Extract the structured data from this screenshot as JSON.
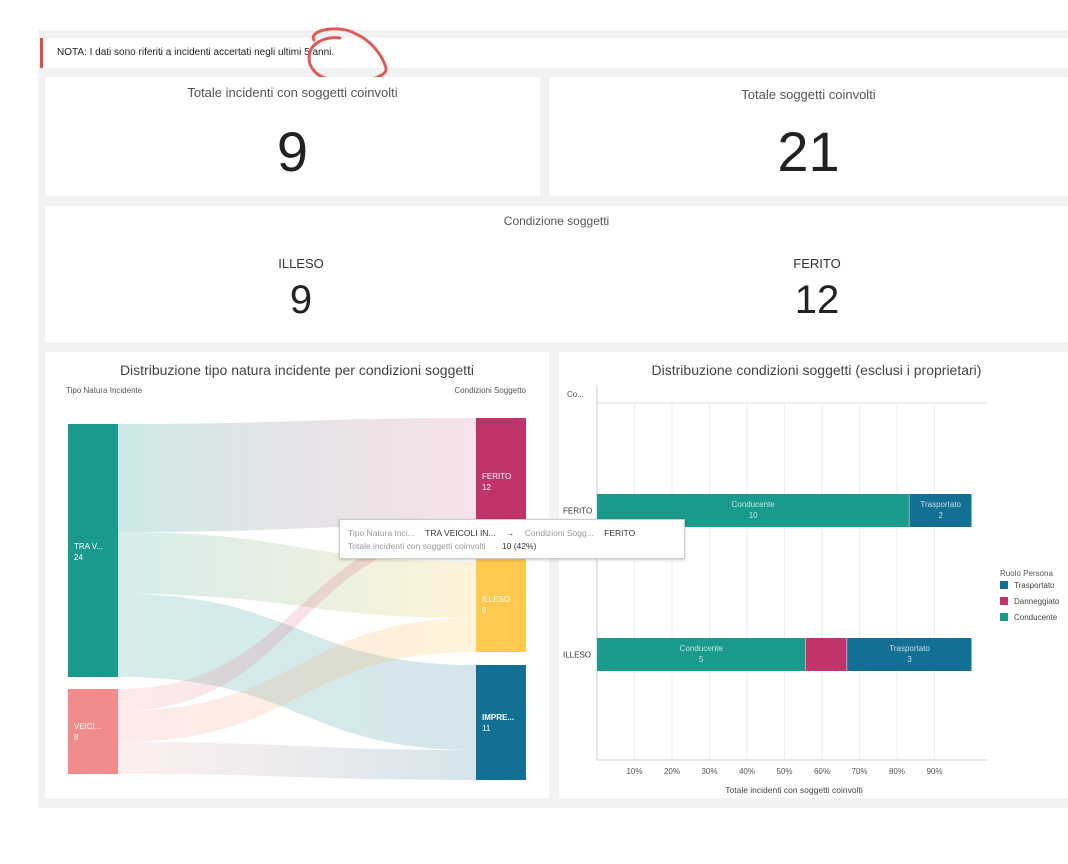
{
  "note": {
    "text": "NOTA: I dati sono riferiti a incidenti accertati negli ultimi 5 anni."
  },
  "kpi_incidenti": {
    "title": "Totale incidenti con soggetti coinvolti",
    "value": "9"
  },
  "kpi_soggetti": {
    "title": "Totale soggetti coinvolti",
    "value": "21"
  },
  "condizione": {
    "title": "Condizione soggetti",
    "items": [
      {
        "label": "ILLESO",
        "value": "9"
      },
      {
        "label": "FERITO",
        "value": "12"
      }
    ]
  },
  "sankey": {
    "title": "Distribuzione tipo natura incidente per condizioni soggetti",
    "left_header": "Tipo Natura Incidente",
    "right_header": "Condizioni Soggetto",
    "sources": [
      {
        "label": "TRA V...",
        "value": "24",
        "color": "#1a9a8c"
      },
      {
        "label": "VEICI...",
        "value": "8",
        "color": "#f28c8c"
      }
    ],
    "targets": [
      {
        "label": "FERITO",
        "value": "12",
        "color": "#c0336b"
      },
      {
        "label": "ILLESO",
        "value": "9",
        "color": "#ffc94f"
      },
      {
        "label": "IMPRE...",
        "value": "11",
        "color": "#136f94"
      }
    ]
  },
  "tooltip": {
    "k1": "Tipo Natura Inci...",
    "v1": "TRA VEICOLI IN...",
    "arrow": "→",
    "k2": "Condizioni Sogg...",
    "v2": "FERITO",
    "k3": "Totale incidenti con soggetti coinvolti",
    "v3": "10 (42%)"
  },
  "bar_panel": {
    "title": "Distribuzione condizioni soggetti (esclusi i proprietari)",
    "y_header": "Co...",
    "x_title": "Totale incidenti con soggetti coinvolti",
    "legend_title": "Ruolo Persona"
  },
  "chart_data": {
    "type": "bar",
    "orientation": "horizontal",
    "stacked": true,
    "percent": true,
    "title": "Distribuzione condizioni soggetti (esclusi i proprietari)",
    "xlabel": "Totale incidenti con soggetti coinvolti",
    "ylabel": "Co...",
    "categories": [
      "FERITO",
      "ILLESO"
    ],
    "x_ticks": [
      "10%",
      "20%",
      "30%",
      "40%",
      "50%",
      "60%",
      "70%",
      "80%",
      "90%"
    ],
    "xlim": [
      0,
      100
    ],
    "series": [
      {
        "name": "Conducente",
        "color": "#1a9a8c",
        "values": [
          10,
          5
        ],
        "pct": [
          83.3,
          55.6
        ]
      },
      {
        "name": "Danneggiato",
        "color": "#c0336b",
        "values": [
          0,
          1
        ],
        "pct": [
          0,
          11.1
        ]
      },
      {
        "name": "Trasportato",
        "color": "#136f94",
        "values": [
          2,
          3
        ],
        "pct": [
          16.7,
          33.3
        ]
      }
    ],
    "legend": {
      "title": "Ruolo Persona",
      "position": "right",
      "entries": [
        "Trasportato",
        "Danneggiato",
        "Conducente"
      ]
    },
    "grid": true
  }
}
